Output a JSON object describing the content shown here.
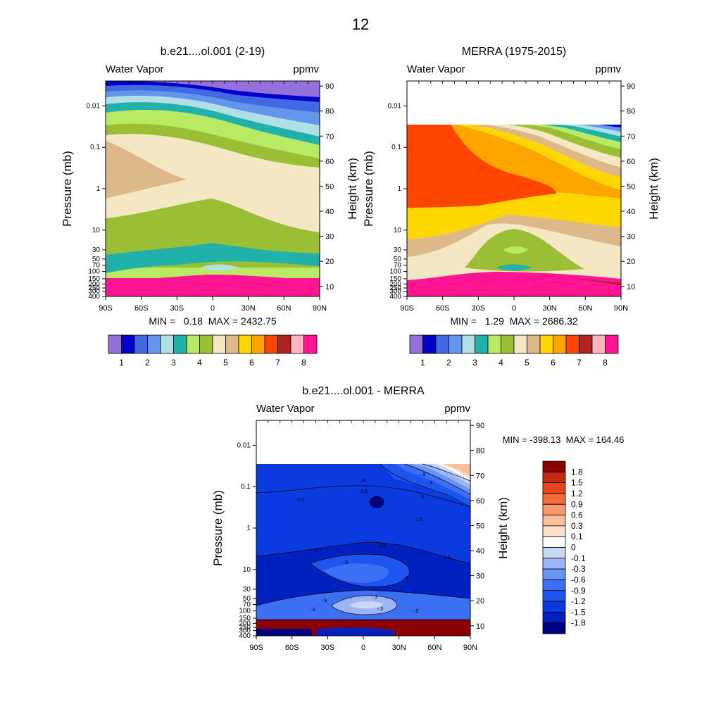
{
  "page": {
    "title": "12"
  },
  "colors": {
    "abs_fill": [
      "#9370db",
      "#0000cd",
      "#4169e1",
      "#6495ed",
      "#b0e0e6",
      "#20b2aa",
      "#b8ea63",
      "#9abf35",
      "#f5e6c4",
      "#ddb98a",
      "#ffd700",
      "#ffa500",
      "#ff4500",
      "#b22222",
      "#ffb6c1",
      "#ff1493"
    ],
    "diff_fill": [
      "#000080",
      "#0020c0",
      "#0a3ae0",
      "#1e55f0",
      "#3b70f5",
      "#6b93f5",
      "#9bb5f5",
      "#c8d8f5",
      "#ffffff",
      "#fde0cc",
      "#fbbf9b",
      "#f79a6e",
      "#f26a3c",
      "#e6461e",
      "#c82a0e",
      "#8b0000"
    ]
  },
  "chart_data": [
    {
      "type": "contour",
      "id": "model",
      "title": "b.e21....ol.001 (2-19)",
      "left_label": "Water Vapor",
      "right_label": "ppmv",
      "ylabel": "Pressure (mb)",
      "y2label": "Height (km)",
      "x_ticks": [
        "90S",
        "60S",
        "30S",
        "0",
        "30N",
        "60N",
        "90N"
      ],
      "y_ticks": [
        "0.01",
        "0.1",
        "1",
        "10",
        "30",
        "50",
        "70",
        "100",
        "150",
        "200",
        "250",
        "300",
        "400"
      ],
      "y2_ticks": [
        "90",
        "80",
        "70",
        "60",
        "50",
        "40",
        "30",
        "20",
        "10"
      ],
      "stats": "MIN =   0.18  MAX = 2432.75",
      "colorbar_labels": [
        "1",
        "2",
        "3",
        "4",
        "5",
        "6",
        "7",
        "8"
      ],
      "regions": [
        {
          "name": "mesosphere-top",
          "color_index": 0
        },
        {
          "name": "stratosphere-broad",
          "color_index": 8
        },
        {
          "name": "stratosphere-max",
          "color_index": 9
        },
        {
          "name": "middle-stratosphere",
          "color_index": 7
        },
        {
          "name": "tropical-minimum",
          "color_index": 5
        },
        {
          "name": "troposphere",
          "color_index": 15
        }
      ]
    },
    {
      "type": "contour",
      "id": "merra",
      "title": "MERRA (1975-2015)",
      "left_label": "Water Vapor",
      "right_label": "ppmv",
      "ylabel": "Pressure (mb)",
      "y2label": "Height (km)",
      "x_ticks": [
        "90S",
        "60S",
        "30S",
        "0",
        "30N",
        "60N",
        "90N"
      ],
      "y_ticks": [
        "0.01",
        "0.1",
        "1",
        "10",
        "30",
        "50",
        "70",
        "100",
        "150",
        "200",
        "250",
        "300",
        "400"
      ],
      "y2_ticks": [
        "90",
        "80",
        "70",
        "60",
        "50",
        "40",
        "30",
        "20",
        "10"
      ],
      "stats": "MIN =   1.29  MAX = 2686.32",
      "colorbar_labels": [
        "1",
        "2",
        "3",
        "4",
        "5",
        "6",
        "7",
        "8"
      ],
      "regions": [
        {
          "name": "upper-max",
          "color_index": 12
        },
        {
          "name": "stratosphere-orange",
          "color_index": 11
        },
        {
          "name": "lower-stratosphere-yellow",
          "color_index": 10
        },
        {
          "name": "tropical-minimum",
          "color_index": 7
        },
        {
          "name": "troposphere",
          "color_index": 15
        }
      ]
    },
    {
      "type": "contour",
      "id": "diff",
      "title": "b.e21....ol.001 - MERRA",
      "left_label": "Water Vapor",
      "right_label": "ppmv",
      "ylabel": "Pressure (mb)",
      "y2label": "Height (km)",
      "x_ticks": [
        "90S",
        "60S",
        "30S",
        "0",
        "30N",
        "60N",
        "90N"
      ],
      "y_ticks": [
        "0.01",
        "0.1",
        "1",
        "10",
        "30",
        "50",
        "70",
        "100",
        "150",
        "200",
        "250",
        "300",
        "400"
      ],
      "y2_ticks": [
        "90",
        "80",
        "70",
        "60",
        "50",
        "40",
        "30",
        "20",
        "10"
      ],
      "stats": "MIN = -398.13  MAX = 164.46",
      "colorbar_labels": [
        "1.8",
        "1.5",
        "1.2",
        "0.9",
        "0.6",
        "0.3",
        "0.1",
        "0",
        "-0.1",
        "-0.3",
        "-0.6",
        "-0.9",
        "-1.2",
        "-1.5",
        "-1.8"
      ],
      "contour_labels": [
        "-1.5",
        "-1.5",
        "-.9",
        "-.9",
        "-1.5",
        "-1.5",
        "-1.5",
        "-.9",
        "-.9",
        "-.3",
        "-.3",
        "-.9",
        "-.6",
        "-.9",
        "-1.5",
        "-.3",
        "-.9"
      ]
    }
  ]
}
